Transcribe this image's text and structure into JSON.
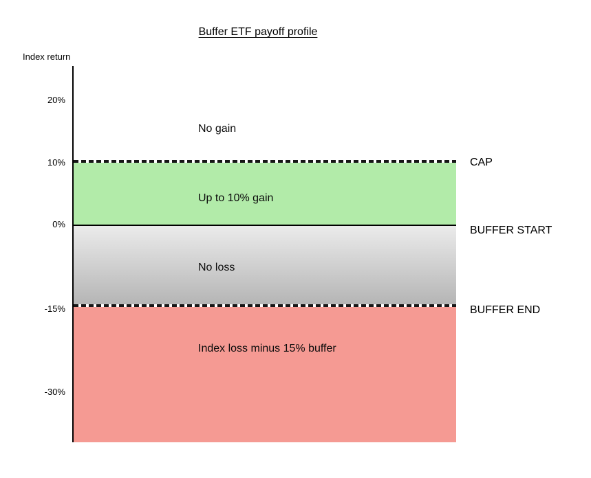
{
  "chart": {
    "title": "Buffer ETF payoff profile",
    "y_axis_label": "Index return",
    "ticks": [
      {
        "label": "20%"
      },
      {
        "label": "10%"
      },
      {
        "label": "0%"
      },
      {
        "label": "-15%"
      },
      {
        "label": "-30%"
      }
    ],
    "zones": [
      {
        "label": "No gain",
        "fill": "#ffffff"
      },
      {
        "label": "Up to 10% gain",
        "fill": "#b2eba9"
      },
      {
        "label": "No loss",
        "fill_top": "#ebebeb",
        "fill_bottom": "#b5b5b5"
      },
      {
        "label": "Index loss minus 15% buffer",
        "fill": "#f59a93"
      }
    ],
    "thresholds": [
      {
        "label": "CAP",
        "line_style": "dashed"
      },
      {
        "label": "BUFFER START",
        "line_style": "solid"
      },
      {
        "label": "BUFFER END",
        "line_style": "dashed"
      }
    ],
    "colors": {
      "axis": "#000000",
      "gain_zone": "#b2eba9",
      "loss_zone": "#f59a93",
      "no_loss_zone_top": "#ebebeb",
      "no_loss_zone_bottom": "#b5b5b5",
      "line": "#161616"
    }
  },
  "chart_data": {
    "type": "area",
    "title": "Buffer ETF payoff profile",
    "xlabel": "",
    "ylabel": "Index return",
    "y_tick_labels": [
      "20%",
      "10%",
      "0%",
      "-15%",
      "-30%"
    ],
    "y_tick_values": [
      20,
      10,
      0,
      -15,
      -30
    ],
    "ylim": [
      -38,
      26
    ],
    "grid": false,
    "legend": "none",
    "thresholds": [
      {
        "name": "CAP",
        "value_pct": 10,
        "line_style": "dashed"
      },
      {
        "name": "BUFFER START",
        "value_pct": 0,
        "line_style": "solid"
      },
      {
        "name": "BUFFER END",
        "value_pct": -15,
        "line_style": "dashed"
      }
    ],
    "zones": [
      {
        "label": "No gain",
        "from_pct": 10,
        "to_pct": 26,
        "fill": "none"
      },
      {
        "label": "Up to 10% gain",
        "from_pct": 0,
        "to_pct": 10,
        "fill": "#b2eba9"
      },
      {
        "label": "No loss",
        "from_pct": -15,
        "to_pct": 0,
        "fill": "gradient #ebebeb to #b5b5b5"
      },
      {
        "label": "Index loss minus 15% buffer",
        "from_pct": -38,
        "to_pct": -15,
        "fill": "#f59a93"
      }
    ]
  }
}
